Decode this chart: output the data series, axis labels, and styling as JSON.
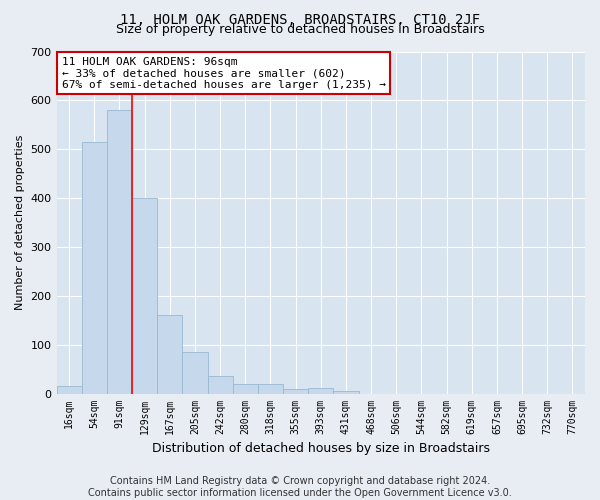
{
  "title": "11, HOLM OAK GARDENS, BROADSTAIRS, CT10 2JF",
  "subtitle": "Size of property relative to detached houses in Broadstairs",
  "xlabel": "Distribution of detached houses by size in Broadstairs",
  "ylabel": "Number of detached properties",
  "bar_labels": [
    "16sqm",
    "54sqm",
    "91sqm",
    "129sqm",
    "167sqm",
    "205sqm",
    "242sqm",
    "280sqm",
    "318sqm",
    "355sqm",
    "393sqm",
    "431sqm",
    "468sqm",
    "506sqm",
    "544sqm",
    "582sqm",
    "619sqm",
    "657sqm",
    "695sqm",
    "732sqm",
    "770sqm"
  ],
  "bar_values": [
    15,
    515,
    580,
    400,
    160,
    85,
    35,
    20,
    20,
    10,
    12,
    5,
    0,
    0,
    0,
    0,
    0,
    0,
    0,
    0,
    0
  ],
  "bar_color": "#c6d9ec",
  "bar_edgecolor": "#9ab8d0",
  "red_line_x": 2.5,
  "annotation_text": "11 HOLM OAK GARDENS: 96sqm\n← 33% of detached houses are smaller (602)\n67% of semi-detached houses are larger (1,235) →",
  "annotation_box_color": "#ffffff",
  "annotation_box_edgecolor": "#cc0000",
  "ylim": [
    0,
    700
  ],
  "yticks": [
    0,
    100,
    200,
    300,
    400,
    500,
    600,
    700
  ],
  "footer_text": "Contains HM Land Registry data © Crown copyright and database right 2024.\nContains public sector information licensed under the Open Government Licence v3.0.",
  "background_color": "#e8edf4",
  "plot_background_color": "#d8e4f0",
  "grid_color": "#ffffff",
  "title_fontsize": 10,
  "subtitle_fontsize": 9,
  "footer_fontsize": 7
}
